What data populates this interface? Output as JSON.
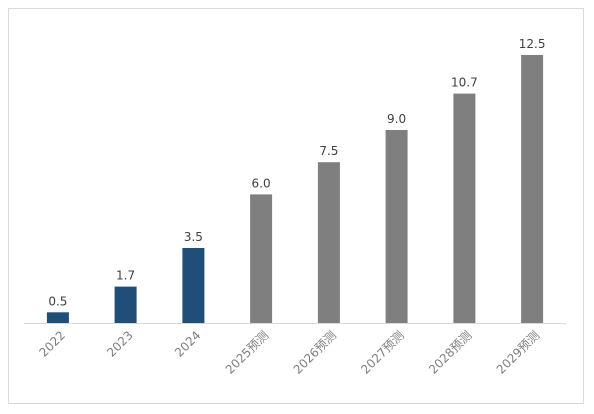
{
  "chart_data": {
    "type": "bar",
    "categories": [
      "2022",
      "2023",
      "2024",
      "2025预测",
      "2026预测",
      "2027预测",
      "2028预测",
      "2029预测"
    ],
    "values": [
      0.5,
      1.7,
      3.5,
      6.0,
      7.5,
      9.0,
      10.7,
      12.5
    ],
    "value_labels": [
      "0.5",
      "1.7",
      "3.5",
      "6.0",
      "7.5",
      "9.0",
      "10.7",
      "12.5"
    ],
    "title": "",
    "xlabel": "",
    "ylabel": "",
    "ylim": [
      0,
      12.5
    ],
    "grid": false,
    "legend": "none",
    "colors": {
      "actual": "#1f4e79",
      "forecast": "#7f7f7f",
      "baseline": "#d9d9d9"
    },
    "forecast_start_index": 3
  }
}
